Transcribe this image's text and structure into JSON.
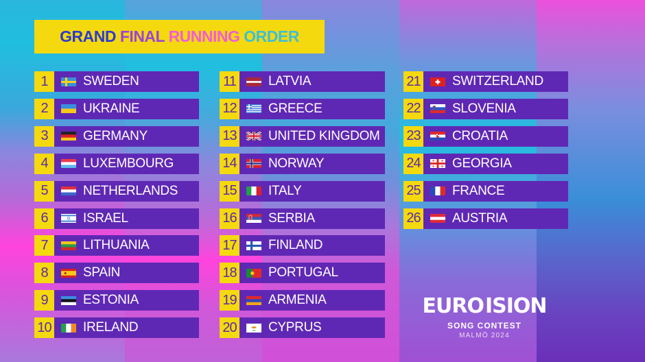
{
  "title": {
    "words": [
      "GRAND",
      "FINAL",
      "RUNNING",
      "ORDER"
    ],
    "colors": [
      "#2a3bd0",
      "#9b45d6",
      "#f25cd8",
      "#3dbfd8"
    ]
  },
  "colors": {
    "number_box": "#f5d90f",
    "number_text": "#5b2ba8",
    "bar": "#5f28b4",
    "country_text": "#ffffff"
  },
  "running_order": [
    {
      "number": "1",
      "country": "SWEDEN",
      "flag": "sweden-flag"
    },
    {
      "number": "2",
      "country": "UKRAINE",
      "flag": "ukraine-flag"
    },
    {
      "number": "3",
      "country": "GERMANY",
      "flag": "germany-flag"
    },
    {
      "number": "4",
      "country": "LUXEMBOURG",
      "flag": "luxembourg-flag"
    },
    {
      "number": "5",
      "country": "NETHERLANDS",
      "flag": "netherlands-flag"
    },
    {
      "number": "6",
      "country": "ISRAEL",
      "flag": "israel-flag"
    },
    {
      "number": "7",
      "country": "LITHUANIA",
      "flag": "lithuania-flag"
    },
    {
      "number": "8",
      "country": "SPAIN",
      "flag": "spain-flag"
    },
    {
      "number": "9",
      "country": "ESTONIA",
      "flag": "estonia-flag"
    },
    {
      "number": "10",
      "country": "IRELAND",
      "flag": "ireland-flag"
    },
    {
      "number": "11",
      "country": "LATVIA",
      "flag": "latvia-flag"
    },
    {
      "number": "12",
      "country": "GREECE",
      "flag": "greece-flag"
    },
    {
      "number": "13",
      "country": "UNITED KINGDOM",
      "flag": "united-kingdom-flag"
    },
    {
      "number": "14",
      "country": "NORWAY",
      "flag": "norway-flag"
    },
    {
      "number": "15",
      "country": "ITALY",
      "flag": "italy-flag"
    },
    {
      "number": "16",
      "country": "SERBIA",
      "flag": "serbia-flag"
    },
    {
      "number": "17",
      "country": "FINLAND",
      "flag": "finland-flag"
    },
    {
      "number": "18",
      "country": "PORTUGAL",
      "flag": "portugal-flag"
    },
    {
      "number": "19",
      "country": "ARMENIA",
      "flag": "armenia-flag"
    },
    {
      "number": "20",
      "country": "CYPRUS",
      "flag": "cyprus-flag"
    },
    {
      "number": "21",
      "country": "SWITZERLAND",
      "flag": "switzerland-flag"
    },
    {
      "number": "22",
      "country": "SLOVENIA",
      "flag": "slovenia-flag"
    },
    {
      "number": "23",
      "country": "CROATIA",
      "flag": "croatia-flag"
    },
    {
      "number": "24",
      "country": "GEORGIA",
      "flag": "georgia-flag"
    },
    {
      "number": "25",
      "country": "FRANCE",
      "flag": "france-flag"
    },
    {
      "number": "26",
      "country": "AUSTRIA",
      "flag": "austria-flag"
    }
  ],
  "logo": {
    "left": "EURO",
    "right": "ISION",
    "subtitle": "SONG CONTEST",
    "host": "MALMÖ 2024"
  }
}
